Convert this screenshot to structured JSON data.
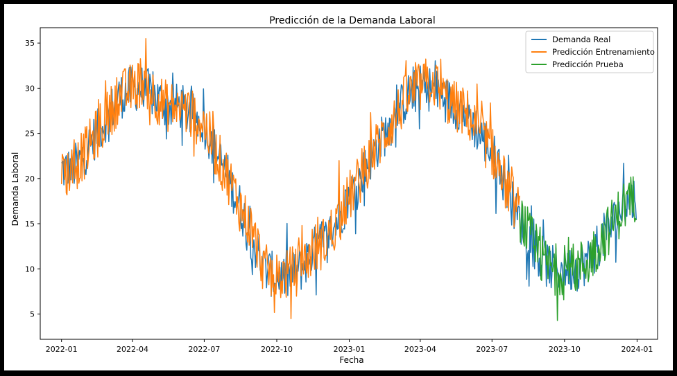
{
  "chart_data": {
    "type": "line",
    "title": "Predicción de la Demanda Laboral",
    "xlabel": "Fecha",
    "ylabel": "Demanda Laboral",
    "x_range": [
      "2021-12-05",
      "2024-01-27"
    ],
    "ylim": [
      2.2,
      36.7
    ],
    "x_ticks": [
      {
        "date": "2022-01-01",
        "label": "2022-01"
      },
      {
        "date": "2022-04-01",
        "label": "2022-04"
      },
      {
        "date": "2022-07-01",
        "label": "2022-07"
      },
      {
        "date": "2022-10-01",
        "label": "2022-10"
      },
      {
        "date": "2023-01-01",
        "label": "2023-01"
      },
      {
        "date": "2023-04-01",
        "label": "2023-04"
      },
      {
        "date": "2023-07-01",
        "label": "2023-07"
      },
      {
        "date": "2023-10-01",
        "label": "2023-10"
      },
      {
        "date": "2024-01-01",
        "label": "2024-01"
      }
    ],
    "y_ticks": [
      5,
      10,
      15,
      20,
      25,
      30,
      35
    ],
    "grid": false,
    "legend_position": "top-right",
    "series": [
      {
        "name": "Demanda Real",
        "color": "#1f77b4",
        "x": [
          "2022-01-01",
          "2022-01-15",
          "2022-02-01",
          "2022-02-15",
          "2022-03-01",
          "2022-03-15",
          "2022-04-01",
          "2022-04-15",
          "2022-05-01",
          "2022-05-15",
          "2022-06-01",
          "2022-06-15",
          "2022-07-01",
          "2022-07-15",
          "2022-08-01",
          "2022-08-15",
          "2022-09-01",
          "2022-09-15",
          "2022-10-01",
          "2022-10-15",
          "2022-11-01",
          "2022-11-15",
          "2022-12-01",
          "2022-12-15",
          "2023-01-01",
          "2023-01-15",
          "2023-02-01",
          "2023-02-15",
          "2023-03-01",
          "2023-03-15",
          "2023-04-01",
          "2023-04-15",
          "2023-05-01",
          "2023-05-15",
          "2023-06-01",
          "2023-06-15",
          "2023-07-01",
          "2023-07-15",
          "2023-08-01",
          "2023-08-15",
          "2023-09-01",
          "2023-09-15",
          "2023-10-01",
          "2023-10-15",
          "2023-11-01",
          "2023-11-15",
          "2023-12-01",
          "2023-12-15",
          "2023-12-31"
        ],
        "values": [
          21,
          21,
          23,
          25,
          27,
          29,
          30,
          30,
          29,
          28,
          28,
          27,
          26,
          23,
          20,
          17,
          13,
          10,
          9,
          9,
          10,
          12,
          13,
          15,
          18,
          20,
          23,
          25,
          27,
          29,
          30,
          30,
          29,
          28,
          27,
          25,
          23,
          20,
          16,
          14,
          11,
          10,
          10,
          10,
          11,
          13,
          15,
          17,
          18
        ]
      },
      {
        "name": "Predicción Entrenamiento",
        "color": "#ff7f0e",
        "x": [
          "2022-01-01",
          "2022-01-15",
          "2022-02-01",
          "2022-02-15",
          "2022-03-01",
          "2022-03-15",
          "2022-04-01",
          "2022-04-15",
          "2022-05-01",
          "2022-05-15",
          "2022-06-01",
          "2022-06-15",
          "2022-07-01",
          "2022-07-15",
          "2022-08-01",
          "2022-08-15",
          "2022-09-01",
          "2022-09-15",
          "2022-10-01",
          "2022-10-15",
          "2022-11-01",
          "2022-11-15",
          "2022-12-01",
          "2022-12-15",
          "2023-01-01",
          "2023-01-15",
          "2023-02-01",
          "2023-02-15",
          "2023-03-01",
          "2023-03-15",
          "2023-04-01",
          "2023-04-15",
          "2023-05-01",
          "2023-05-15",
          "2023-06-01",
          "2023-06-15",
          "2023-07-01",
          "2023-07-15",
          "2023-08-05"
        ],
        "values": [
          20.5,
          21,
          23,
          25,
          27,
          29,
          30,
          31,
          29,
          28,
          28,
          27,
          26,
          23,
          20,
          17,
          14,
          10,
          9,
          9.5,
          10,
          12,
          13,
          15,
          18,
          20,
          23,
          25,
          27,
          29,
          30,
          31,
          29,
          28,
          27,
          25,
          23,
          20,
          16
        ]
      },
      {
        "name": "Predicción Prueba",
        "color": "#2ca02c",
        "x": [
          "2023-08-05",
          "2023-08-15",
          "2023-09-01",
          "2023-09-15",
          "2023-10-01",
          "2023-10-15",
          "2023-11-01",
          "2023-11-15",
          "2023-12-01",
          "2023-12-15",
          "2023-12-31"
        ],
        "values": [
          16,
          14,
          11,
          10,
          10,
          10,
          11,
          13,
          15,
          17,
          18
        ]
      }
    ]
  }
}
